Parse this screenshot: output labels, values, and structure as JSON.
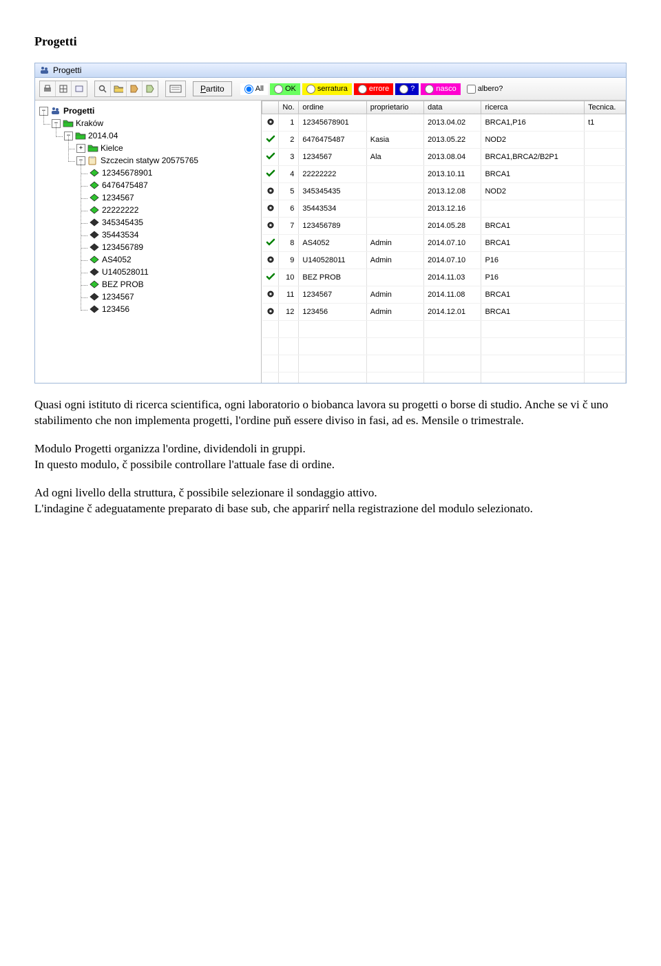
{
  "page": {
    "heading": "Progetti",
    "window_title": "Progetti"
  },
  "toolbar": {
    "icons": [
      "print-icon",
      "grid-icon",
      "card-icon",
      "search-icon",
      "open-icon",
      "tag1-icon",
      "tag2-icon",
      "form-icon"
    ]
  },
  "filters": {
    "partito_label": "Partito",
    "all_label": "All",
    "ok_label": "OK",
    "serratura_label": "serratura",
    "errore_label": "errore",
    "question_label": "?",
    "nasco_label": "nasco",
    "albero_label": "albero?",
    "bg_all": "#ffffff",
    "bg_ok": "#69ff5e",
    "bg_serratura": "#fff500",
    "bg_errore": "#ff0000",
    "bg_question": "#0000c8",
    "bg_nasco": "#ff00d0",
    "fg_errore": "#ffffff",
    "fg_question": "#ffffff",
    "fg_nasco": "#ffffff"
  },
  "tree": {
    "root_label": "Progetti",
    "krakow_label": "Kraków",
    "date_label": "2014.04",
    "kielce_label": "Kielce",
    "szczecin_label": "Szczecin statyw 20575765",
    "leaves": [
      {
        "label": "12345678901",
        "color": "green"
      },
      {
        "label": "6476475487",
        "color": "green"
      },
      {
        "label": "1234567",
        "color": "green"
      },
      {
        "label": "22222222",
        "color": "green"
      },
      {
        "label": "345345435",
        "color": "black"
      },
      {
        "label": "35443534",
        "color": "black"
      },
      {
        "label": "123456789",
        "color": "black"
      },
      {
        "label": "AS4052",
        "color": "green"
      },
      {
        "label": "U140528011",
        "color": "black"
      },
      {
        "label": "BEZ PROB",
        "color": "green"
      },
      {
        "label": "1234567",
        "color": "black"
      },
      {
        "label": "123456",
        "color": "black"
      }
    ]
  },
  "table": {
    "columns": [
      "",
      "No.",
      "ordine",
      "proprietario",
      "data",
      "ricerca",
      "Tecnica."
    ],
    "col_widths": [
      "22px",
      "28px",
      "92px",
      "78px",
      "78px",
      "140px",
      "56px"
    ],
    "rows": [
      {
        "status": "dot",
        "no": "1",
        "ordine": "12345678901",
        "prop": "",
        "data": "2013.04.02",
        "ricerca": "BRCA1,P16",
        "tec": "t1"
      },
      {
        "status": "check",
        "no": "2",
        "ordine": "6476475487",
        "prop": "Kasia",
        "data": "2013.05.22",
        "ricerca": "NOD2",
        "tec": ""
      },
      {
        "status": "check",
        "no": "3",
        "ordine": "1234567",
        "prop": "Ala",
        "data": "2013.08.04",
        "ricerca": "BRCA1,BRCA2/B2P1",
        "tec": ""
      },
      {
        "status": "check",
        "no": "4",
        "ordine": "22222222",
        "prop": "",
        "data": "2013.10.11",
        "ricerca": "BRCA1",
        "tec": ""
      },
      {
        "status": "dot",
        "no": "5",
        "ordine": "345345435",
        "prop": "",
        "data": "2013.12.08",
        "ricerca": "NOD2",
        "tec": ""
      },
      {
        "status": "dot",
        "no": "6",
        "ordine": "35443534",
        "prop": "",
        "data": "2013.12.16",
        "ricerca": "",
        "tec": ""
      },
      {
        "status": "dot",
        "no": "7",
        "ordine": "123456789",
        "prop": "",
        "data": "2014.05.28",
        "ricerca": "BRCA1",
        "tec": ""
      },
      {
        "status": "check",
        "no": "8",
        "ordine": "AS4052",
        "prop": "Admin",
        "data": "2014.07.10",
        "ricerca": "BRCA1",
        "tec": ""
      },
      {
        "status": "dot",
        "no": "9",
        "ordine": "U140528011",
        "prop": "Admin",
        "data": "2014.07.10",
        "ricerca": "P16",
        "tec": ""
      },
      {
        "status": "check",
        "no": "10",
        "ordine": "BEZ PROB",
        "prop": "",
        "data": "2014.11.03",
        "ricerca": "P16",
        "tec": ""
      },
      {
        "status": "dot",
        "no": "11",
        "ordine": "1234567",
        "prop": "Admin",
        "data": "2014.11.08",
        "ricerca": "BRCA1",
        "tec": ""
      },
      {
        "status": "dot",
        "no": "12",
        "ordine": "123456",
        "prop": "Admin",
        "data": "2014.12.01",
        "ricerca": "BRCA1",
        "tec": ""
      }
    ],
    "empty_rows": 4
  },
  "body": {
    "p1": "Quasi ogni istituto di ricerca scientifica, ogni laboratorio o biobanca lavora su progetti o borse di studio. Anche se vi č uno stabilimento che non implementa progetti, l'ordine puň essere diviso in fasi, ad es. Mensile o trimestrale.",
    "p2": "Modulo Progetti organizza l'ordine, dividendoli in gruppi.\nIn questo modulo, č possibile controllare l'attuale fase di ordine.",
    "p3": "Ad ogni livello della struttura, č possibile selezionare il sondaggio attivo.\nL'indagine č adeguatamente preparato di base sub, che apparirŕ nella registrazione del modulo selezionato."
  },
  "icons": {
    "folder_green": "#2ec22e",
    "folder_black": "#303030",
    "clipboard": "#d89030"
  }
}
